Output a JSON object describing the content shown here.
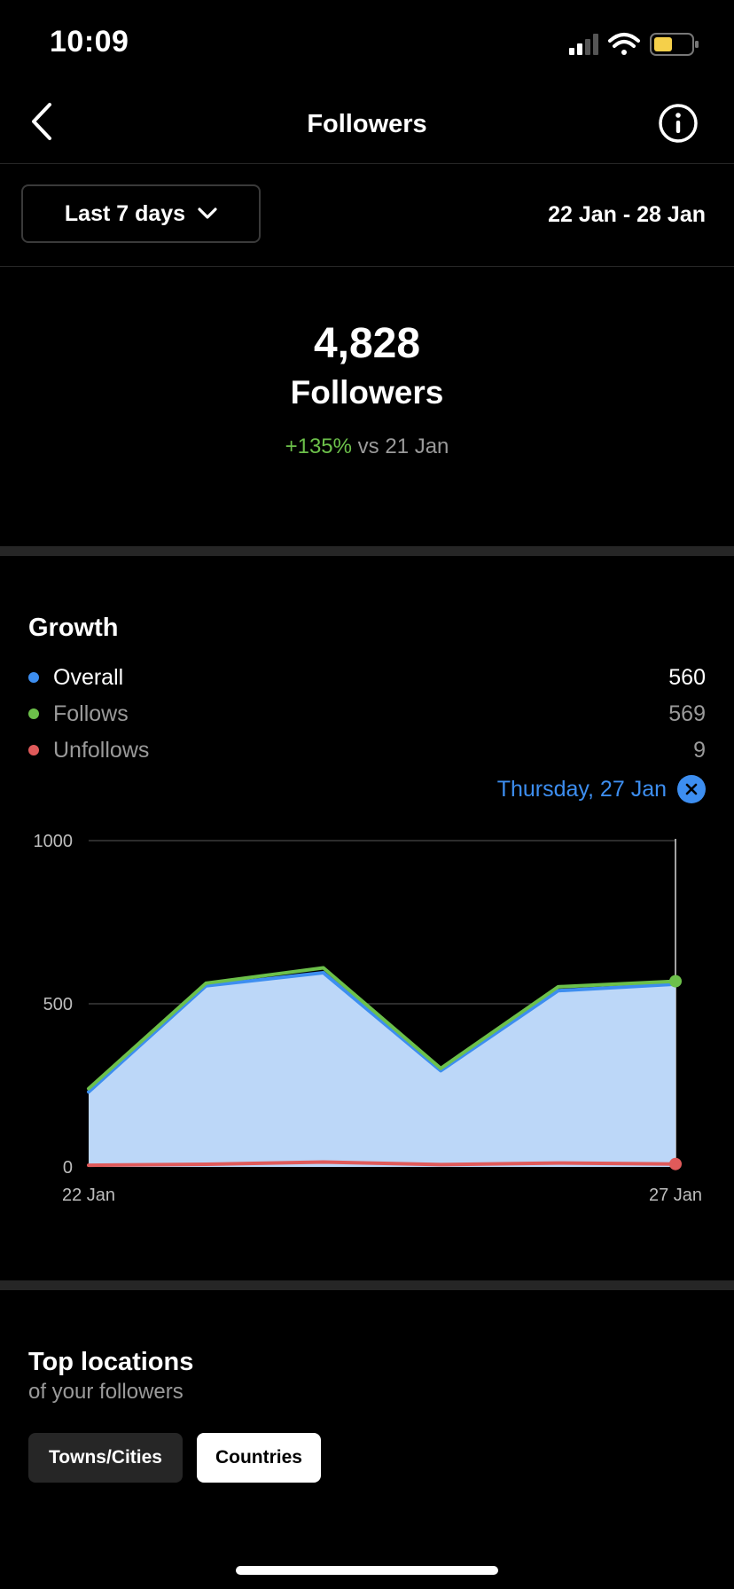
{
  "status_bar": {
    "time": "10:09",
    "battery_color": "#f5d04a"
  },
  "nav": {
    "title": "Followers",
    "back_icon": "chevron-left-icon",
    "info_icon": "info-icon"
  },
  "range": {
    "selected": "Last 7 days",
    "dates": "22 Jan - 28 Jan"
  },
  "summary": {
    "count": "4,828",
    "label": "Followers",
    "change": "+135%",
    "vs": "vs 21 Jan"
  },
  "growth": {
    "title": "Growth",
    "legend": [
      {
        "name": "Overall",
        "value": "560",
        "color": "#3d8ef0"
      },
      {
        "name": "Follows",
        "value": "569",
        "color": "#6cc04a"
      },
      {
        "name": "Unfollows",
        "value": "9",
        "color": "#e05a5a"
      }
    ],
    "selected_date": "Thursday, 27 Jan"
  },
  "chart_data": {
    "type": "area",
    "x": [
      "22 Jan",
      "23 Jan",
      "24 Jan",
      "25 Jan",
      "26 Jan",
      "27 Jan"
    ],
    "x_tick_labels": [
      "22 Jan",
      "27 Jan"
    ],
    "y_ticks": [
      "0",
      "500",
      "1000"
    ],
    "ylim": [
      0,
      1000
    ],
    "grid": true,
    "series": [
      {
        "name": "Overall",
        "values": [
          230,
          555,
          595,
          295,
          540,
          560
        ],
        "color": "#3d8ef0",
        "fill": "#bcd7f8"
      },
      {
        "name": "Follows",
        "values": [
          240,
          563,
          610,
          302,
          552,
          569
        ],
        "color": "#6cc04a"
      },
      {
        "name": "Unfollows",
        "values": [
          5,
          8,
          15,
          7,
          12,
          9
        ],
        "color": "#e05a5a"
      }
    ],
    "highlight_index": 5
  },
  "locations": {
    "title": "Top locations",
    "subtitle": "of your followers",
    "tabs": [
      {
        "label": "Towns/Cities"
      },
      {
        "label": "Countries"
      }
    ]
  }
}
